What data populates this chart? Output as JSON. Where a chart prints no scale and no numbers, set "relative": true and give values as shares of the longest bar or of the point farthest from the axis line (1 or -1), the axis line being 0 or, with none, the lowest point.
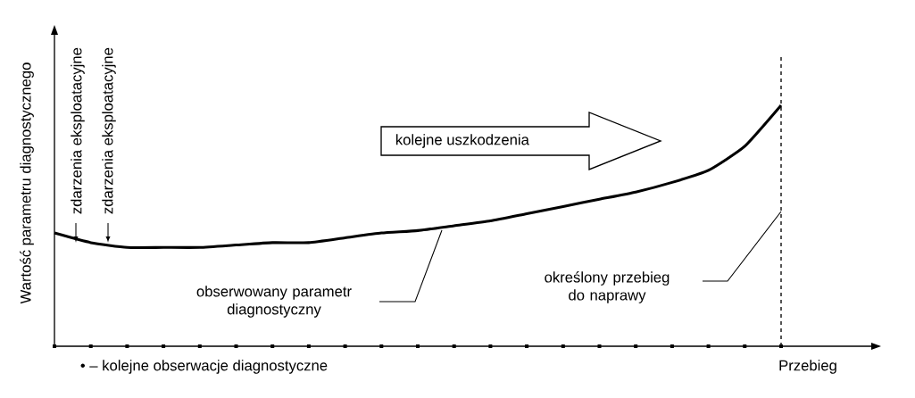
{
  "chart_data": {
    "type": "line",
    "relative": true,
    "xlabel": "Przebieg",
    "ylabel": "Wartość parametru diagnostycznego",
    "categories": [
      null,
      null,
      null,
      null,
      null,
      null,
      null,
      null,
      null,
      null,
      null,
      null,
      null,
      null,
      null,
      null,
      null,
      null,
      null,
      null,
      null
    ],
    "series": [
      {
        "color": "#000000",
        "line_style": "solid",
        "values": [
          0.47,
          0.43,
          0.41,
          0.41,
          0.41,
          0.42,
          0.43,
          0.43,
          0.45,
          0.47,
          0.48,
          0.5,
          0.52,
          0.55,
          0.58,
          0.61,
          0.64,
          0.68,
          0.73,
          0.83,
          1
        ]
      }
    ],
    "annotations": [
      "zdarzenia eksploatacyjne",
      "zdarzenia eksploatacyjne",
      "kolejne uszkodzenia",
      "obserwowany parametr diagnostyczny",
      "• – kolejne obserwacje diagnostyczne",
      "określony przebieg do naprawy"
    ]
  }
}
